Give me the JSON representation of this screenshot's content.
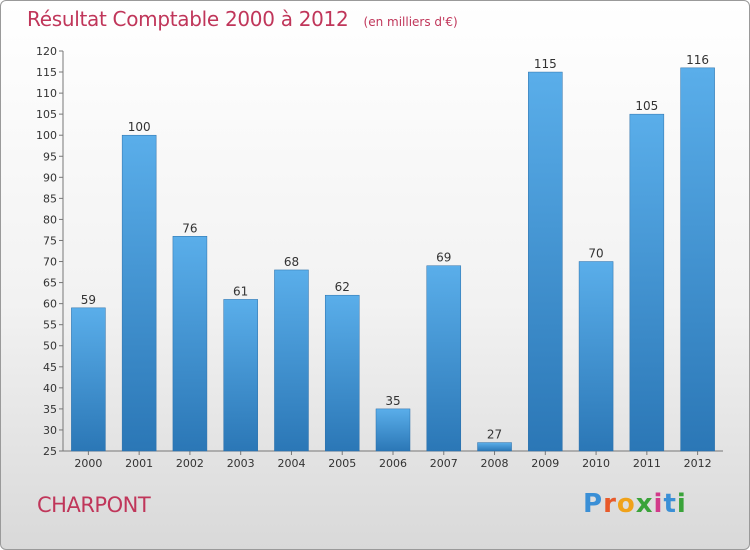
{
  "header": {
    "title": "Résultat Comptable 2000 à 2012",
    "subtitle": "(en milliers d'€)"
  },
  "footer": {
    "commune": "CHARPONT",
    "logo_letters": [
      "P",
      "r",
      "o",
      "x",
      "i",
      "t",
      "i"
    ],
    "logo_colors": [
      "#3a8fd6",
      "#e85a2a",
      "#f0a21a",
      "#3aa33a",
      "#d23a8a",
      "#3a8fd6",
      "#3aa33a"
    ]
  },
  "chart_data": {
    "type": "bar",
    "title": "Résultat Comptable 2000 à 2012",
    "subtitle": "(en milliers d'€)",
    "categories": [
      "2000",
      "2001",
      "2002",
      "2003",
      "2004",
      "2005",
      "2006",
      "2007",
      "2008",
      "2009",
      "2010",
      "2011",
      "2012"
    ],
    "values": [
      59,
      100,
      76,
      61,
      68,
      62,
      35,
      69,
      27,
      115,
      70,
      105,
      116
    ],
    "ylim": [
      25,
      120
    ],
    "yticks": [
      25,
      30,
      35,
      40,
      45,
      50,
      55,
      60,
      65,
      70,
      75,
      80,
      85,
      90,
      95,
      100,
      105,
      110,
      115,
      120
    ],
    "grid": false,
    "bar_color": "#3d8fd1",
    "title_color": "#c0365a"
  }
}
